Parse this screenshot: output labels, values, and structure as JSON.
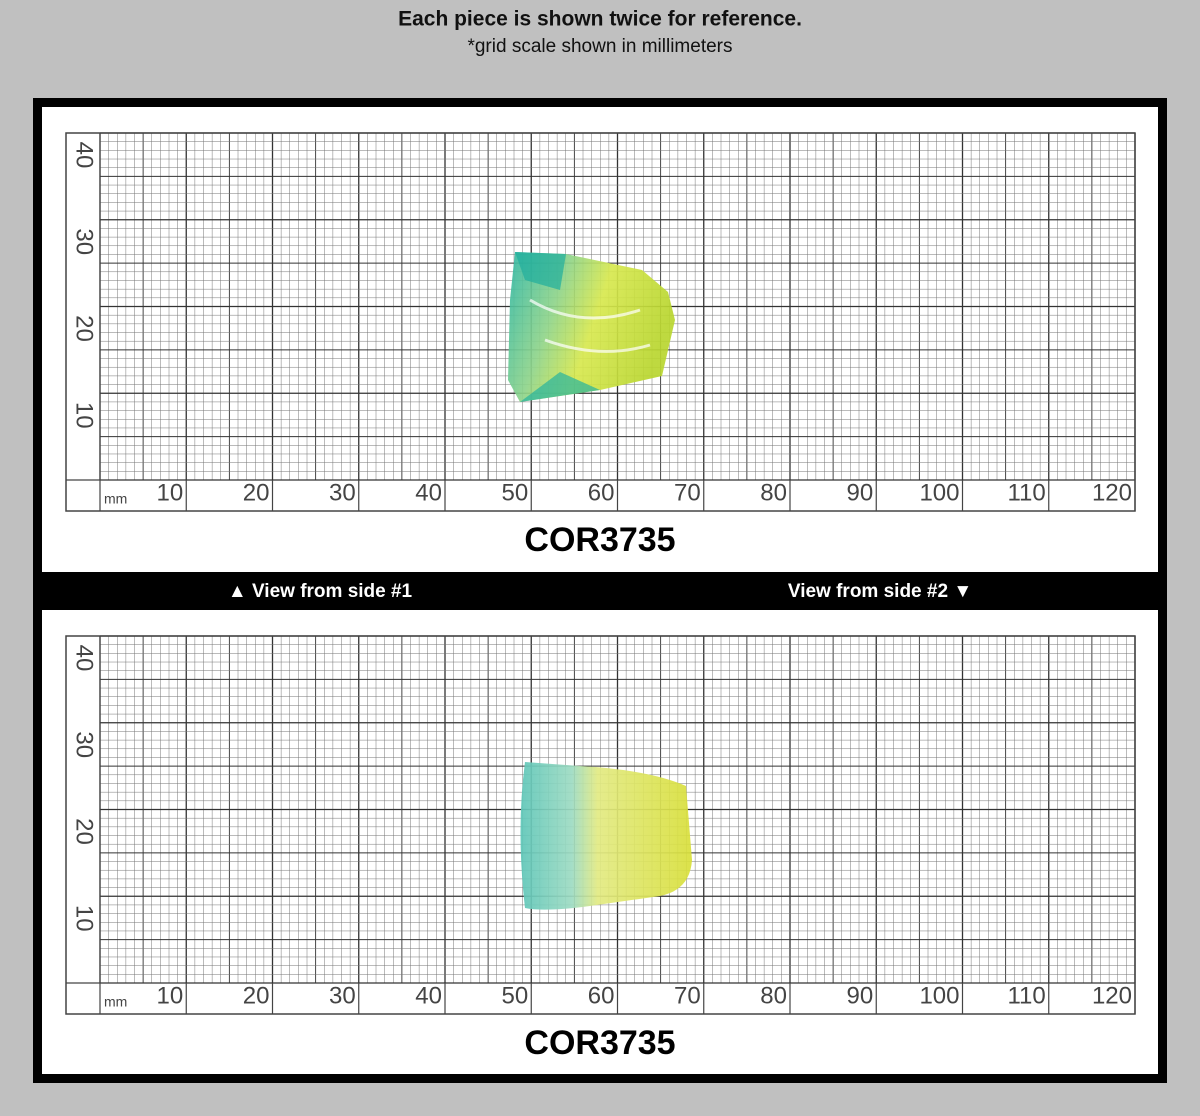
{
  "header": {
    "title": "Each piece is shown twice for reference.",
    "subtitle": "*grid scale shown in millimeters"
  },
  "panels": [
    {
      "unit": "mm",
      "x_labels": [
        10,
        20,
        30,
        40,
        50,
        60,
        70,
        80,
        90,
        100,
        110,
        120
      ],
      "y_labels": [
        40,
        30,
        20,
        10
      ],
      "code": "COR3735"
    },
    {
      "unit": "mm",
      "x_labels": [
        10,
        20,
        30,
        40,
        50,
        60,
        70,
        80,
        90,
        100,
        110,
        120
      ],
      "y_labels": [
        40,
        30,
        20,
        10
      ],
      "code": "COR3735"
    }
  ],
  "divider": {
    "left": "▲ View from side #1",
    "right": "View from side #2 ▼"
  }
}
